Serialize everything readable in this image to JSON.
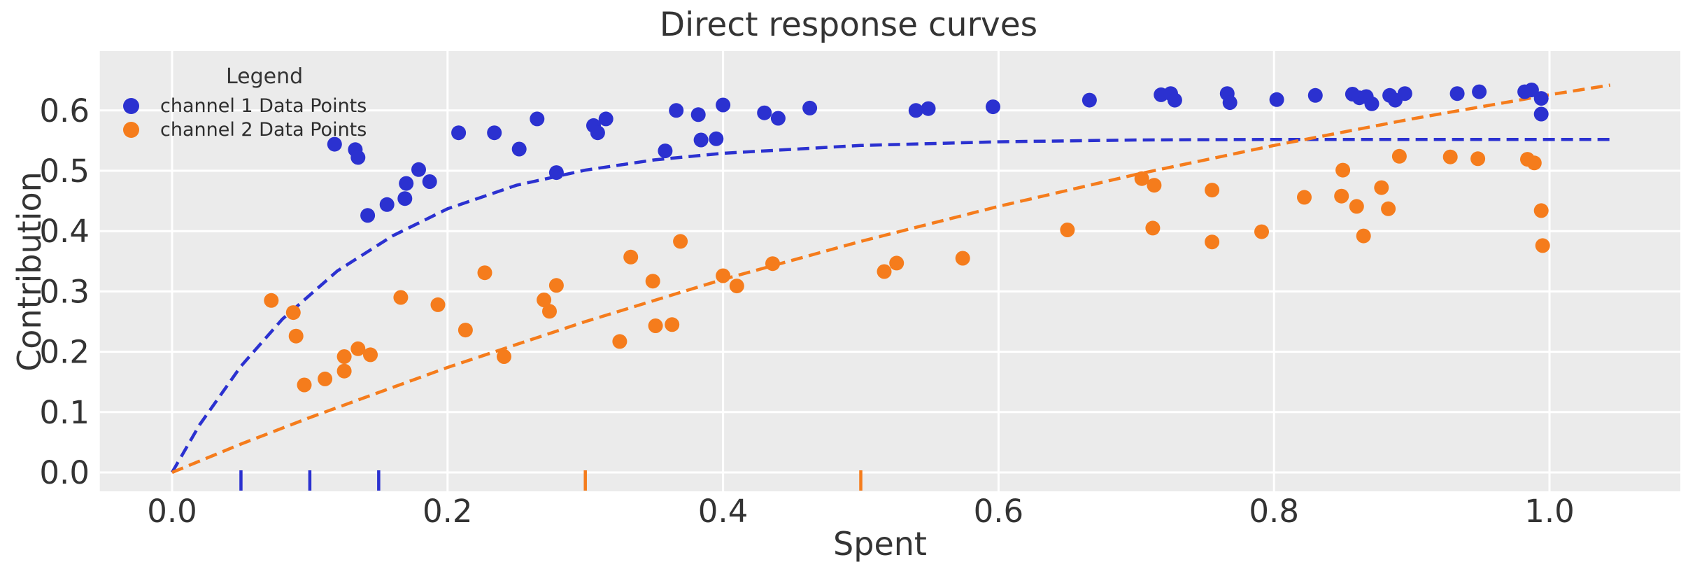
{
  "title": "Direct response curves",
  "xlabel": "Spent",
  "ylabel": "Contribution",
  "legend": {
    "title": "Legend",
    "position": "upper left",
    "items": [
      {
        "label": "channel 1 Data Points",
        "color": "#2b31d0"
      },
      {
        "label": "channel 2 Data Points",
        "color": "#f57c1c"
      }
    ]
  },
  "colors": {
    "channel1": "#2b31d0",
    "channel2": "#f57c1c",
    "plot_background": "#ebebeb",
    "grid": "#ffffff",
    "text": "#343434",
    "tick_text": "#333333"
  },
  "chart_data": {
    "type": "scatter",
    "title": "Direct response curves",
    "xlabel": "Spent",
    "ylabel": "Contribution",
    "grid": true,
    "x_ticks": [
      0.0,
      0.2,
      0.4,
      0.6,
      0.8,
      1.0
    ],
    "y_ticks": [
      0.0,
      0.1,
      0.2,
      0.3,
      0.4,
      0.5,
      0.6
    ],
    "xlim": [
      -0.052,
      1.095
    ],
    "ylim": [
      -0.031,
      0.698
    ],
    "series": [
      {
        "name": "channel 1 Data Points",
        "kind": "scatter",
        "color": "#2b31d0",
        "points": [
          [
            0.118,
            0.544
          ],
          [
            0.133,
            0.535
          ],
          [
            0.135,
            0.522
          ],
          [
            0.142,
            0.426
          ],
          [
            0.156,
            0.444
          ],
          [
            0.169,
            0.454
          ],
          [
            0.17,
            0.479
          ],
          [
            0.179,
            0.502
          ],
          [
            0.187,
            0.482
          ],
          [
            0.208,
            0.563
          ],
          [
            0.234,
            0.563
          ],
          [
            0.252,
            0.536
          ],
          [
            0.265,
            0.586
          ],
          [
            0.279,
            0.497
          ],
          [
            0.306,
            0.575
          ],
          [
            0.309,
            0.563
          ],
          [
            0.315,
            0.586
          ],
          [
            0.358,
            0.533
          ],
          [
            0.366,
            0.6
          ],
          [
            0.382,
            0.593
          ],
          [
            0.384,
            0.551
          ],
          [
            0.395,
            0.553
          ],
          [
            0.4,
            0.609
          ],
          [
            0.43,
            0.596
          ],
          [
            0.44,
            0.587
          ],
          [
            0.463,
            0.604
          ],
          [
            0.54,
            0.6
          ],
          [
            0.549,
            0.603
          ],
          [
            0.596,
            0.606
          ],
          [
            0.666,
            0.617
          ],
          [
            0.718,
            0.626
          ],
          [
            0.725,
            0.628
          ],
          [
            0.728,
            0.617
          ],
          [
            0.766,
            0.628
          ],
          [
            0.768,
            0.613
          ],
          [
            0.802,
            0.618
          ],
          [
            0.83,
            0.625
          ],
          [
            0.857,
            0.627
          ],
          [
            0.862,
            0.621
          ],
          [
            0.867,
            0.623
          ],
          [
            0.871,
            0.611
          ],
          [
            0.884,
            0.625
          ],
          [
            0.888,
            0.617
          ],
          [
            0.895,
            0.628
          ],
          [
            0.933,
            0.628
          ],
          [
            0.949,
            0.631
          ],
          [
            0.982,
            0.631
          ],
          [
            0.987,
            0.634
          ],
          [
            0.994,
            0.62
          ],
          [
            0.994,
            0.594
          ]
        ]
      },
      {
        "name": "channel 2 Data Points",
        "kind": "scatter",
        "color": "#f57c1c",
        "points": [
          [
            0.072,
            0.285
          ],
          [
            0.088,
            0.265
          ],
          [
            0.09,
            0.226
          ],
          [
            0.096,
            0.145
          ],
          [
            0.111,
            0.155
          ],
          [
            0.125,
            0.168
          ],
          [
            0.125,
            0.192
          ],
          [
            0.135,
            0.205
          ],
          [
            0.144,
            0.195
          ],
          [
            0.166,
            0.29
          ],
          [
            0.193,
            0.278
          ],
          [
            0.213,
            0.236
          ],
          [
            0.227,
            0.331
          ],
          [
            0.241,
            0.192
          ],
          [
            0.27,
            0.286
          ],
          [
            0.274,
            0.267
          ],
          [
            0.279,
            0.31
          ],
          [
            0.325,
            0.217
          ],
          [
            0.333,
            0.357
          ],
          [
            0.349,
            0.317
          ],
          [
            0.351,
            0.243
          ],
          [
            0.363,
            0.245
          ],
          [
            0.369,
            0.383
          ],
          [
            0.4,
            0.326
          ],
          [
            0.41,
            0.309
          ],
          [
            0.436,
            0.346
          ],
          [
            0.517,
            0.333
          ],
          [
            0.526,
            0.347
          ],
          [
            0.574,
            0.355
          ],
          [
            0.65,
            0.402
          ],
          [
            0.704,
            0.487
          ],
          [
            0.712,
            0.405
          ],
          [
            0.713,
            0.476
          ],
          [
            0.755,
            0.382
          ],
          [
            0.755,
            0.468
          ],
          [
            0.791,
            0.399
          ],
          [
            0.822,
            0.456
          ],
          [
            0.849,
            0.458
          ],
          [
            0.85,
            0.501
          ],
          [
            0.86,
            0.441
          ],
          [
            0.865,
            0.392
          ],
          [
            0.878,
            0.472
          ],
          [
            0.883,
            0.437
          ],
          [
            0.891,
            0.524
          ],
          [
            0.928,
            0.523
          ],
          [
            0.948,
            0.52
          ],
          [
            0.984,
            0.519
          ],
          [
            0.989,
            0.513
          ],
          [
            0.994,
            0.434
          ],
          [
            0.995,
            0.376
          ]
        ]
      },
      {
        "name": "channel 1 response curve",
        "kind": "dashed-line",
        "color": "#2b31d0",
        "points": [
          [
            0.0,
            0.0
          ],
          [
            0.02,
            0.079
          ],
          [
            0.05,
            0.176
          ],
          [
            0.08,
            0.254
          ],
          [
            0.12,
            0.334
          ],
          [
            0.16,
            0.392
          ],
          [
            0.2,
            0.437
          ],
          [
            0.25,
            0.476
          ],
          [
            0.3,
            0.501
          ],
          [
            0.35,
            0.518
          ],
          [
            0.4,
            0.529
          ],
          [
            0.5,
            0.542
          ],
          [
            0.6,
            0.548
          ],
          [
            0.7,
            0.551
          ],
          [
            0.8,
            0.552
          ],
          [
            0.9,
            0.552
          ],
          [
            1.0,
            0.552
          ],
          [
            1.044,
            0.552
          ]
        ]
      },
      {
        "name": "channel 2 response curve",
        "kind": "dashed-line",
        "color": "#f57c1c",
        "points": [
          [
            0.0,
            0.0
          ],
          [
            0.05,
            0.047
          ],
          [
            0.1,
            0.091
          ],
          [
            0.2,
            0.174
          ],
          [
            0.3,
            0.25
          ],
          [
            0.4,
            0.32
          ],
          [
            0.5,
            0.383
          ],
          [
            0.6,
            0.441
          ],
          [
            0.7,
            0.494
          ],
          [
            0.8,
            0.542
          ],
          [
            0.9,
            0.586
          ],
          [
            1.0,
            0.626
          ],
          [
            1.044,
            0.642
          ]
        ]
      }
    ],
    "rug_ticks": [
      {
        "name": "channel 1 spend marks",
        "color": "#2b31d0",
        "x": [
          0.05,
          0.1,
          0.15
        ]
      },
      {
        "name": "channel 2 spend marks",
        "color": "#f57c1c",
        "x": [
          0.3,
          0.5
        ]
      }
    ]
  }
}
